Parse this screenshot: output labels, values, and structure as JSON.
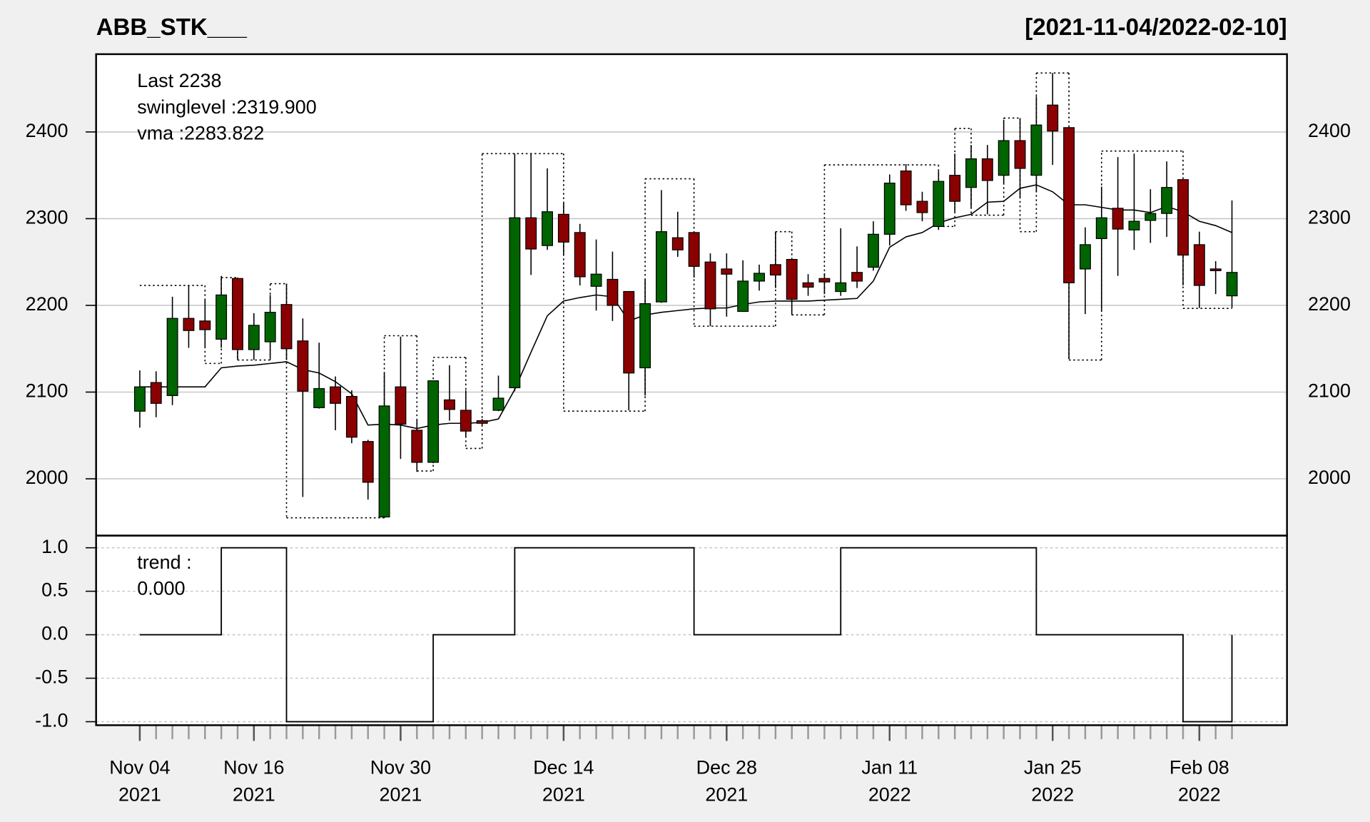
{
  "chart_data": [
    {
      "type": "candlestick",
      "title": "ABB_STK___",
      "subtitle": "[2021-11-04/2022-02-10]",
      "open": [
        2078,
        2111,
        2096,
        2185,
        2182,
        2161,
        2231,
        2149,
        2158,
        2201,
        2159,
        2082,
        2106,
        2095,
        2043,
        1956,
        2106,
        2056,
        2019,
        2091,
        2079,
        2067,
        2079,
        2105,
        2301,
        2269,
        2305,
        2284,
        2222,
        2230,
        2216,
        2128,
        2204,
        2278,
        2284,
        2250,
        2242,
        2193,
        2228,
        2247,
        2253,
        2226,
        2231,
        2216,
        2238,
        2244,
        2282,
        2355,
        2320,
        2291,
        2350,
        2336,
        2369,
        2350,
        2390,
        2350,
        2431,
        2405,
        2242,
        2277,
        2312,
        2287,
        2298,
        2306,
        2345,
        2270,
        2242,
        2211
      ],
      "high": [
        2125,
        2124,
        2210,
        2223,
        2207,
        2234,
        2232,
        2191,
        2212,
        2225,
        2185,
        2157,
        2118,
        2102,
        2045,
        2122,
        2164,
        2069,
        2113,
        2131,
        2102,
        2069,
        2119,
        2375,
        2375,
        2358,
        2318,
        2294,
        2276,
        2262,
        2216,
        2230,
        2333,
        2308,
        2284,
        2260,
        2260,
        2252,
        2247,
        2285,
        2253,
        2236,
        2237,
        2289,
        2268,
        2297,
        2351,
        2363,
        2331,
        2355,
        2375,
        2385,
        2385,
        2414,
        2415,
        2441,
        2468,
        2405,
        2290,
        2337,
        2371,
        2375,
        2334,
        2366,
        2345,
        2285,
        2251,
        2321
      ],
      "low": [
        2059,
        2071,
        2085,
        2151,
        2151,
        2151,
        2137,
        2137,
        2139,
        2137,
        1979,
        2081,
        2056,
        2041,
        1976,
        1955,
        2023,
        2008,
        2018,
        2067,
        2048,
        2061,
        2078,
        2101,
        2235,
        2264,
        2258,
        2223,
        2194,
        2182,
        2079,
        2096,
        2203,
        2256,
        2232,
        2176,
        2187,
        2193,
        2217,
        2220,
        2189,
        2211,
        2213,
        2211,
        2220,
        2240,
        2269,
        2309,
        2297,
        2287,
        2308,
        2313,
        2305,
        2340,
        2324,
        2331,
        2362,
        2138,
        2190,
        2194,
        2234,
        2264,
        2272,
        2279,
        2223,
        2197,
        2213,
        2197
      ],
      "close": [
        2106,
        2087,
        2185,
        2171,
        2172,
        2212,
        2149,
        2177,
        2192,
        2150,
        2101,
        2104,
        2087,
        2048,
        1996,
        2084,
        2063,
        2019,
        2113,
        2080,
        2055,
        2064,
        2093,
        2301,
        2265,
        2308,
        2273,
        2233,
        2236,
        2200,
        2122,
        2202,
        2285,
        2264,
        2245,
        2196,
        2236,
        2228,
        2237,
        2235,
        2207,
        2221,
        2227,
        2226,
        2228,
        2282,
        2341,
        2316,
        2307,
        2343,
        2320,
        2369,
        2344,
        2390,
        2358,
        2408,
        2401,
        2226,
        2270,
        2301,
        2288,
        2297,
        2306,
        2336,
        2258,
        2223,
        2240,
        2238
      ],
      "vma": [
        2106,
        2106,
        2106,
        2106,
        2106,
        2128,
        2130,
        2131,
        2133,
        2135,
        2126,
        2122,
        2112,
        2098,
        2062,
        2063,
        2062,
        2058,
        2062,
        2064,
        2064,
        2065,
        2069,
        2103,
        2146,
        2188,
        2205,
        2209,
        2212,
        2210,
        2182,
        2189,
        2192,
        2194,
        2196,
        2197,
        2197,
        2201,
        2204,
        2205,
        2205,
        2205,
        2206,
        2207,
        2208,
        2228,
        2267,
        2279,
        2284,
        2295,
        2301,
        2305,
        2319,
        2320,
        2335,
        2339,
        2331,
        2316,
        2316,
        2313,
        2310,
        2310,
        2307,
        2314,
        2308,
        2297,
        2292,
        2284
      ],
      "swing_steps": [
        {
          "from": 0,
          "to": 4,
          "level": 2223
        },
        {
          "from": 4,
          "to": 5,
          "level": 2133
        },
        {
          "from": 5,
          "to": 6,
          "level": 2232
        },
        {
          "from": 6,
          "to": 8,
          "level": 2137
        },
        {
          "from": 8,
          "to": 9,
          "level": 2225
        },
        {
          "from": 9,
          "to": 15,
          "level": 1955
        },
        {
          "from": 15,
          "to": 17,
          "level": 2165
        },
        {
          "from": 17,
          "to": 18,
          "level": 2009
        },
        {
          "from": 18,
          "to": 20,
          "level": 2140
        },
        {
          "from": 20,
          "to": 21,
          "level": 2035
        },
        {
          "from": 21,
          "to": 26,
          "level": 2375
        },
        {
          "from": 26,
          "to": 31,
          "level": 2078
        },
        {
          "from": 31,
          "to": 34,
          "level": 2346
        },
        {
          "from": 34,
          "to": 39,
          "level": 2176
        },
        {
          "from": 39,
          "to": 40,
          "level": 2285
        },
        {
          "from": 40,
          "to": 42,
          "level": 2189
        },
        {
          "from": 42,
          "to": 49,
          "level": 2362
        },
        {
          "from": 49,
          "to": 50,
          "level": 2291
        },
        {
          "from": 50,
          "to": 51,
          "level": 2404
        },
        {
          "from": 51,
          "to": 53,
          "level": 2304
        },
        {
          "from": 53,
          "to": 54,
          "level": 2416
        },
        {
          "from": 54,
          "to": 55,
          "level": 2285
        },
        {
          "from": 55,
          "to": 57,
          "level": 2468
        },
        {
          "from": 57,
          "to": 59,
          "level": 2137
        },
        {
          "from": 59,
          "to": 64,
          "level": 2378
        },
        {
          "from": 64,
          "to": 67,
          "level": 2196.5
        }
      ],
      "up_color": "#006400",
      "down_color": "#8b0000",
      "legend": [
        {
          "text": "Last 2238",
          "color": "#006400"
        },
        {
          "text": "swinglevel :2319.900",
          "color": "#000000"
        },
        {
          "text": "vma :2283.822",
          "color": "#000000"
        }
      ],
      "ylim": [
        1934.5,
        2489.7
      ],
      "yticks": [
        2000,
        2100,
        2200,
        2300,
        2400
      ],
      "xticks": [
        {
          "value": 0,
          "label": [
            "Nov 04",
            "2021"
          ]
        },
        {
          "value": 7,
          "label": [
            "Nov 16",
            "2021"
          ]
        },
        {
          "value": 16,
          "label": [
            "Nov 30",
            "2021"
          ]
        },
        {
          "value": 26,
          "label": [
            "Dec 14",
            "2021"
          ]
        },
        {
          "value": 36,
          "label": [
            "Dec 28",
            "2021"
          ]
        },
        {
          "value": 46,
          "label": [
            "Jan 11",
            "2022"
          ]
        },
        {
          "value": 56,
          "label": [
            "Jan 25",
            "2022"
          ]
        },
        {
          "value": 65,
          "label": [
            "Feb 08",
            "2022"
          ]
        }
      ],
      "grid": true
    },
    {
      "type": "step",
      "values": [
        0,
        0,
        0,
        0,
        0,
        1,
        1,
        1,
        1,
        -1,
        -1,
        -1,
        -1,
        -1,
        -1,
        -1,
        -1,
        -1,
        0,
        0,
        0,
        0,
        0,
        1,
        1,
        1,
        1,
        1,
        1,
        1,
        1,
        1,
        1,
        1,
        0,
        0,
        0,
        0,
        0,
        0,
        0,
        0,
        0,
        1,
        1,
        1,
        1,
        1,
        1,
        1,
        1,
        1,
        1,
        1,
        1,
        0,
        0,
        0,
        0,
        0,
        0,
        0,
        0,
        0,
        -1,
        -1,
        -1,
        0
      ],
      "legend": [
        "trend :",
        "0.000"
      ],
      "ylim": [
        -1.04,
        1.14
      ],
      "yticks": [
        {
          "value": 1,
          "label": "1.0"
        },
        0.5,
        {
          "value": 0,
          "label": "0.0"
        },
        -0.5,
        {
          "value": -1,
          "label": "-1.0"
        }
      ],
      "grid": true
    }
  ]
}
